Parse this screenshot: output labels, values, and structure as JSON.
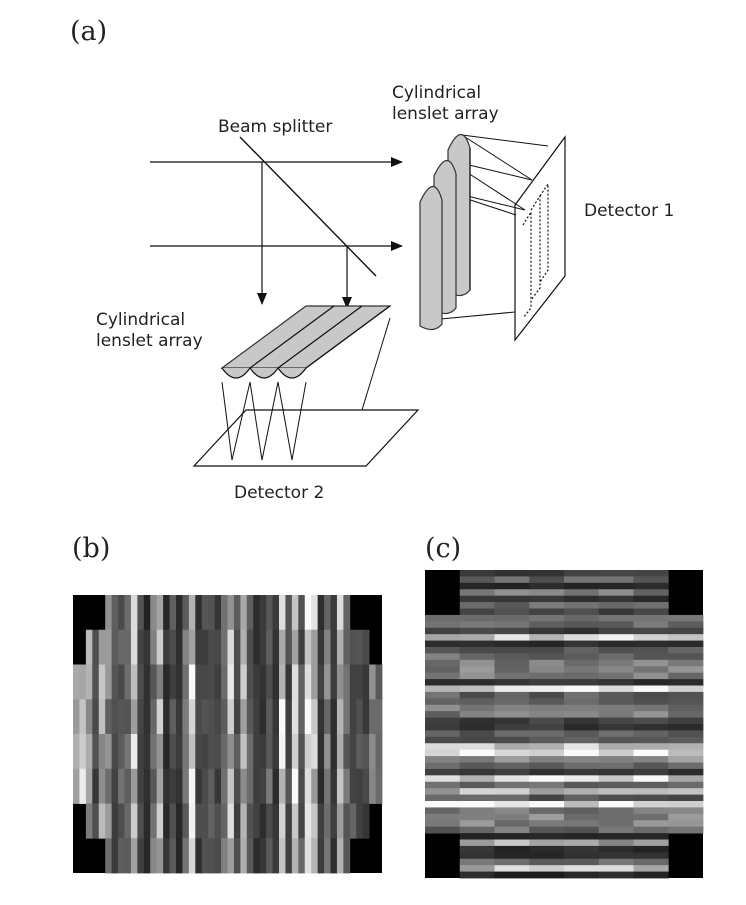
{
  "panels": {
    "a": "(a)",
    "b": "(b)",
    "c": "(c)"
  },
  "diagram": {
    "beam_splitter": "Beam splitter",
    "lenslet_top_line1": "Cylindrical",
    "lenslet_top_line2": "lenslet array",
    "detector1": "Detector 1",
    "lenslet_bottom_line1": "Cylindrical",
    "lenslet_bottom_line2": "lenslet array",
    "detector2": "Detector 2"
  },
  "images": {
    "b": {
      "orientation": "vertical-stripes",
      "seed": 7
    },
    "c": {
      "orientation": "horizontal-stripes",
      "seed": 13
    }
  }
}
